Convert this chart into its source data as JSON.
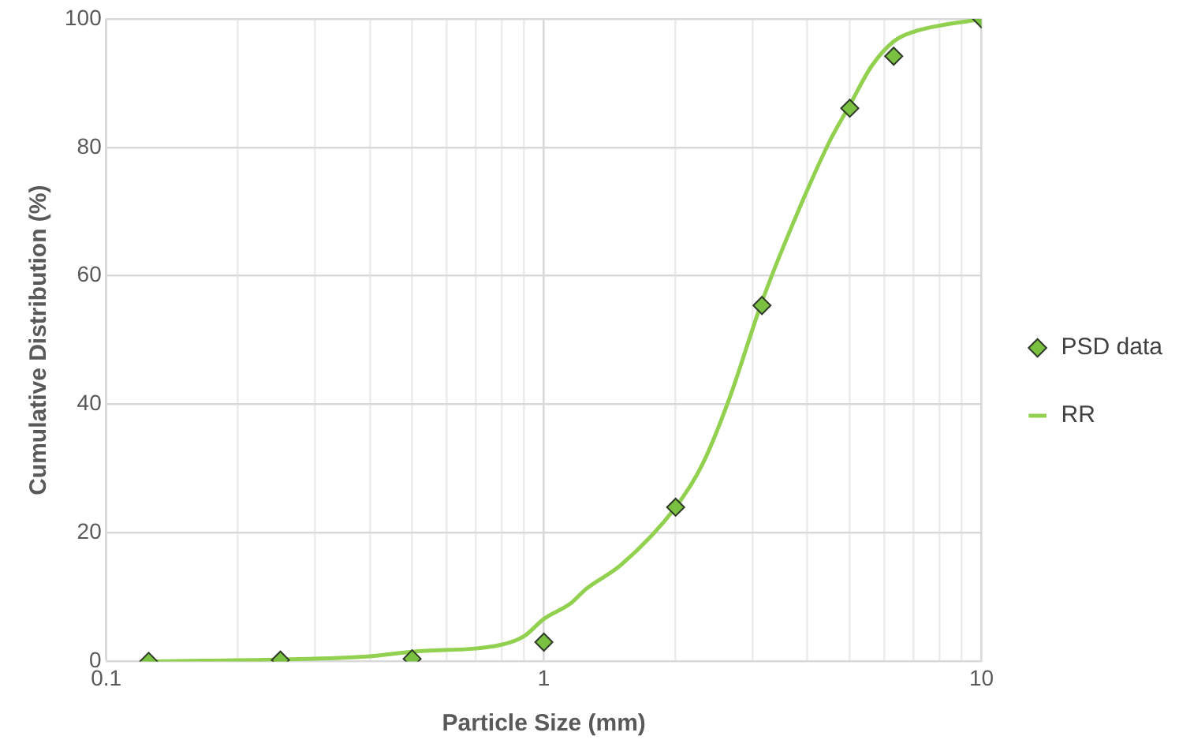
{
  "chart_data": {
    "type": "scatter",
    "xlabel": "Particle Size (mm)",
    "ylabel": "Cumulative Distribution (%)",
    "log": "x",
    "grid": true,
    "legend": "right",
    "xlim": [
      0.1,
      10
    ],
    "xticks": [
      0.1,
      {
        "value": 0.2,
        "label": null
      },
      {
        "value": 0.3,
        "label": null
      },
      {
        "value": 0.4,
        "label": null
      },
      {
        "value": 0.5,
        "label": null
      },
      {
        "value": 0.6,
        "label": null
      },
      {
        "value": 0.7,
        "label": null
      },
      {
        "value": 0.8,
        "label": null
      },
      {
        "value": 0.9,
        "label": null
      },
      1,
      {
        "value": 2,
        "label": null
      },
      {
        "value": 3,
        "label": null
      },
      {
        "value": 4,
        "label": null
      },
      {
        "value": 5,
        "label": null
      },
      {
        "value": 6,
        "label": null
      },
      {
        "value": 7,
        "label": null
      },
      {
        "value": 8,
        "label": null
      },
      {
        "value": 9,
        "label": null
      },
      10
    ],
    "ylim": [
      0,
      100
    ],
    "yticks": [
      0,
      20,
      40,
      60,
      80,
      100
    ],
    "series": [
      {
        "name": "PSD data",
        "type": "scatter",
        "marker": "diamond",
        "color": "#7ac142",
        "x": [
          0.125,
          0.25,
          0.5,
          1,
          2,
          3.15,
          5,
          6.3,
          10
        ],
        "values": [
          0,
          0.2,
          0.4,
          3,
          24,
          55.4,
          86.1,
          94.2,
          100
        ]
      },
      {
        "name": "RR",
        "type": "line",
        "marker": "none",
        "line_style": "solid",
        "color": "#92d050",
        "x": [
          0.125,
          0.25,
          0.4,
          0.5,
          0.8,
          0.9,
          1,
          1.15,
          1.25,
          1.5,
          2,
          2.3,
          2.65,
          3.15,
          3.7,
          4.5,
          5,
          5.6,
          6.3,
          7,
          10
        ],
        "values": [
          0,
          0.3,
          0.8,
          1.5,
          2.6,
          3.9,
          6.6,
          9,
          11.3,
          15,
          24,
          30.6,
          40.8,
          56,
          68,
          81,
          86.6,
          92.6,
          96.5,
          98,
          100
        ]
      }
    ]
  }
}
